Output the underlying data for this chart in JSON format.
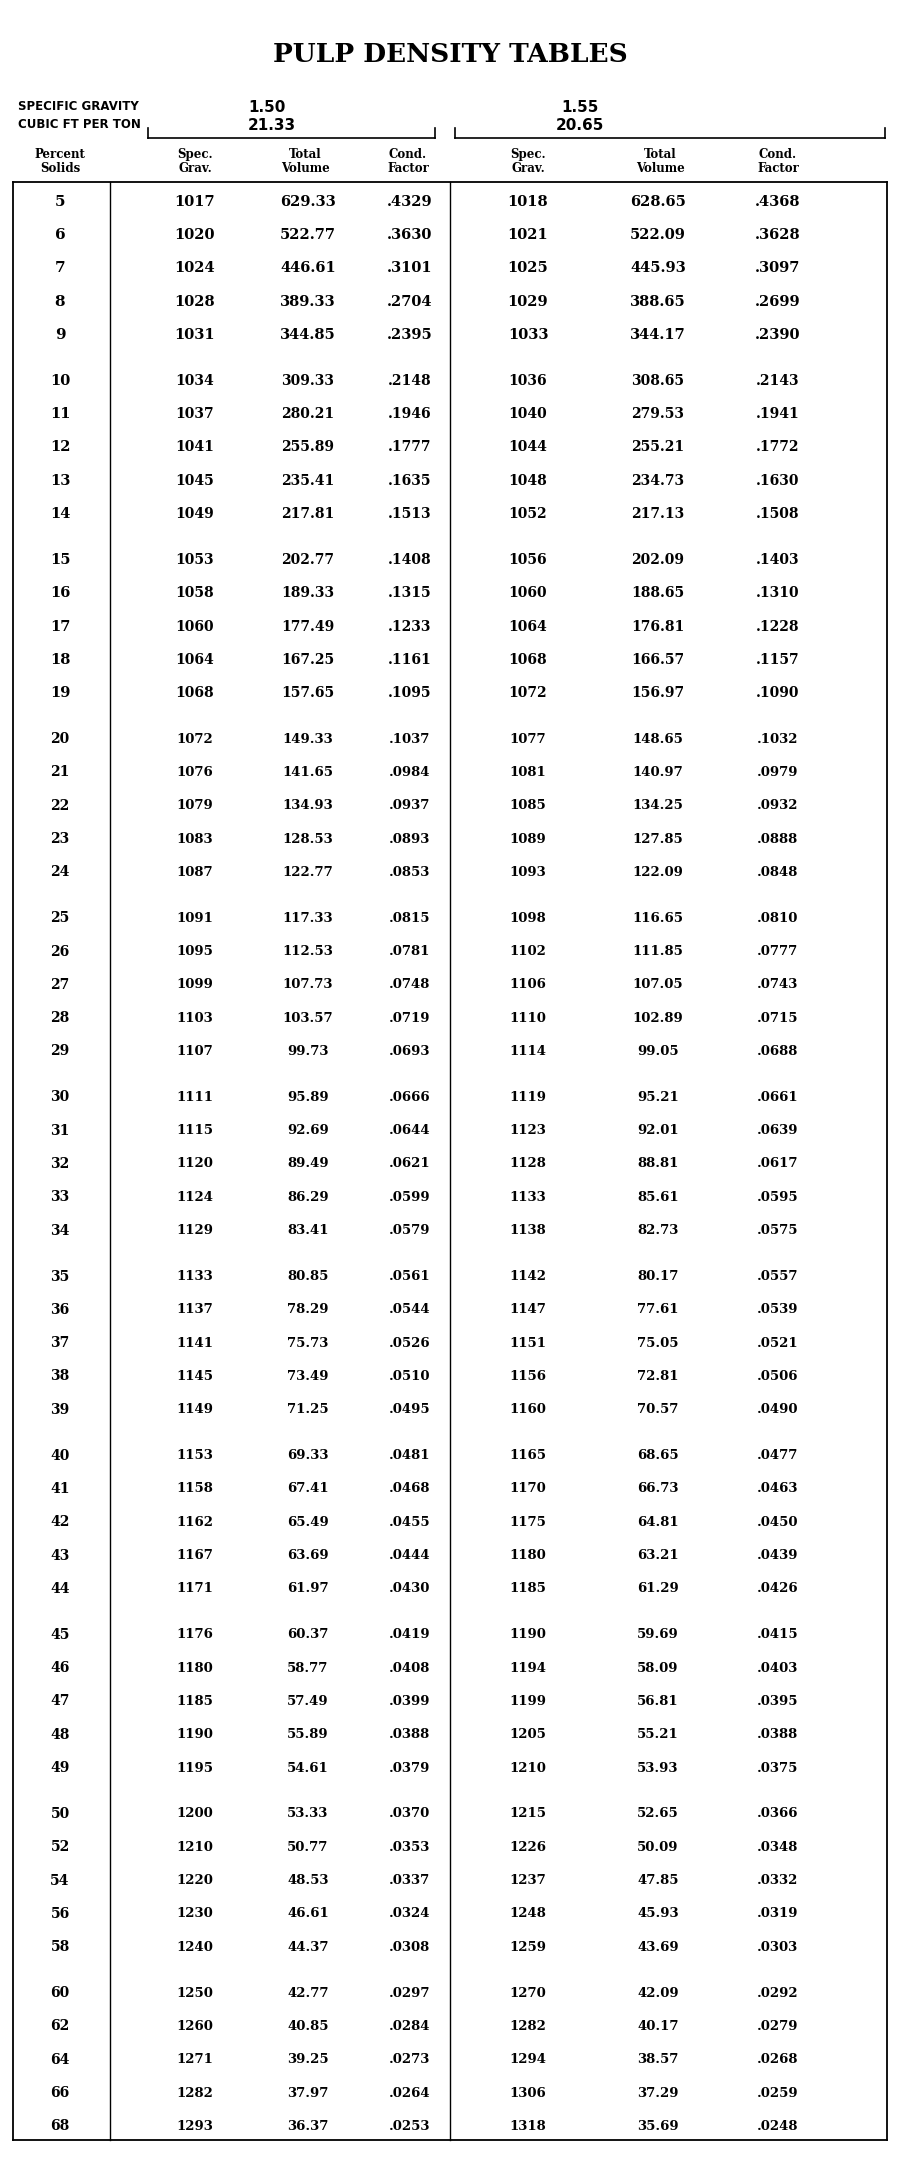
{
  "title": "PULP DENSITY TABLES",
  "sg1": "1.50",
  "cfpt1": "21.33",
  "sg2": "1.55",
  "cfpt2": "20.65",
  "rows": [
    [
      "5",
      "1017",
      "629.33",
      ".4329",
      "1018",
      "628.65",
      ".4368"
    ],
    [
      "6",
      "1020",
      "522.77",
      ".3630",
      "1021",
      "522.09",
      ".3628"
    ],
    [
      "7",
      "1024",
      "446.61",
      ".3101",
      "1025",
      "445.93",
      ".3097"
    ],
    [
      "8",
      "1028",
      "389.33",
      ".2704",
      "1029",
      "388.65",
      ".2699"
    ],
    [
      "9",
      "1031",
      "344.85",
      ".2395",
      "1033",
      "344.17",
      ".2390"
    ],
    null,
    [
      "10",
      "1034",
      "309.33",
      ".2148",
      "1036",
      "308.65",
      ".2143"
    ],
    [
      "11",
      "1037",
      "280.21",
      ".1946",
      "1040",
      "279.53",
      ".1941"
    ],
    [
      "12",
      "1041",
      "255.89",
      ".1777",
      "1044",
      "255.21",
      ".1772"
    ],
    [
      "13",
      "1045",
      "235.41",
      ".1635",
      "1048",
      "234.73",
      ".1630"
    ],
    [
      "14",
      "1049",
      "217.81",
      ".1513",
      "1052",
      "217.13",
      ".1508"
    ],
    null,
    [
      "15",
      "1053",
      "202.77",
      ".1408",
      "1056",
      "202.09",
      ".1403"
    ],
    [
      "16",
      "1058",
      "189.33",
      ".1315",
      "1060",
      "188.65",
      ".1310"
    ],
    [
      "17",
      "1060",
      "177.49",
      ".1233",
      "1064",
      "176.81",
      ".1228"
    ],
    [
      "18",
      "1064",
      "167.25",
      ".1161",
      "1068",
      "166.57",
      ".1157"
    ],
    [
      "19",
      "1068",
      "157.65",
      ".1095",
      "1072",
      "156.97",
      ".1090"
    ],
    null,
    [
      "20",
      "1072",
      "149.33",
      ".1037",
      "1077",
      "148.65",
      ".1032"
    ],
    [
      "21",
      "1076",
      "141.65",
      ".0984",
      "1081",
      "140.97",
      ".0979"
    ],
    [
      "22",
      "1079",
      "134.93",
      ".0937",
      "1085",
      "134.25",
      ".0932"
    ],
    [
      "23",
      "1083",
      "128.53",
      ".0893",
      "1089",
      "127.85",
      ".0888"
    ],
    [
      "24",
      "1087",
      "122.77",
      ".0853",
      "1093",
      "122.09",
      ".0848"
    ],
    null,
    [
      "25",
      "1091",
      "117.33",
      ".0815",
      "1098",
      "116.65",
      ".0810"
    ],
    [
      "26",
      "1095",
      "112.53",
      ".0781",
      "1102",
      "111.85",
      ".0777"
    ],
    [
      "27",
      "1099",
      "107.73",
      ".0748",
      "1106",
      "107.05",
      ".0743"
    ],
    [
      "28",
      "1103",
      "103.57",
      ".0719",
      "1110",
      "102.89",
      ".0715"
    ],
    [
      "29",
      "1107",
      "99.73",
      ".0693",
      "1114",
      "99.05",
      ".0688"
    ],
    null,
    [
      "30",
      "1111",
      "95.89",
      ".0666",
      "1119",
      "95.21",
      ".0661"
    ],
    [
      "31",
      "1115",
      "92.69",
      ".0644",
      "1123",
      "92.01",
      ".0639"
    ],
    [
      "32",
      "1120",
      "89.49",
      ".0621",
      "1128",
      "88.81",
      ".0617"
    ],
    [
      "33",
      "1124",
      "86.29",
      ".0599",
      "1133",
      "85.61",
      ".0595"
    ],
    [
      "34",
      "1129",
      "83.41",
      ".0579",
      "1138",
      "82.73",
      ".0575"
    ],
    null,
    [
      "35",
      "1133",
      "80.85",
      ".0561",
      "1142",
      "80.17",
      ".0557"
    ],
    [
      "36",
      "1137",
      "78.29",
      ".0544",
      "1147",
      "77.61",
      ".0539"
    ],
    [
      "37",
      "1141",
      "75.73",
      ".0526",
      "1151",
      "75.05",
      ".0521"
    ],
    [
      "38",
      "1145",
      "73.49",
      ".0510",
      "1156",
      "72.81",
      ".0506"
    ],
    [
      "39",
      "1149",
      "71.25",
      ".0495",
      "1160",
      "70.57",
      ".0490"
    ],
    null,
    [
      "40",
      "1153",
      "69.33",
      ".0481",
      "1165",
      "68.65",
      ".0477"
    ],
    [
      "41",
      "1158",
      "67.41",
      ".0468",
      "1170",
      "66.73",
      ".0463"
    ],
    [
      "42",
      "1162",
      "65.49",
      ".0455",
      "1175",
      "64.81",
      ".0450"
    ],
    [
      "43",
      "1167",
      "63.69",
      ".0444",
      "1180",
      "63.21",
      ".0439"
    ],
    [
      "44",
      "1171",
      "61.97",
      ".0430",
      "1185",
      "61.29",
      ".0426"
    ],
    null,
    [
      "45",
      "1176",
      "60.37",
      ".0419",
      "1190",
      "59.69",
      ".0415"
    ],
    [
      "46",
      "1180",
      "58.77",
      ".0408",
      "1194",
      "58.09",
      ".0403"
    ],
    [
      "47",
      "1185",
      "57.49",
      ".0399",
      "1199",
      "56.81",
      ".0395"
    ],
    [
      "48",
      "1190",
      "55.89",
      ".0388",
      "1205",
      "55.21",
      ".0388"
    ],
    [
      "49",
      "1195",
      "54.61",
      ".0379",
      "1210",
      "53.93",
      ".0375"
    ],
    null,
    [
      "50",
      "1200",
      "53.33",
      ".0370",
      "1215",
      "52.65",
      ".0366"
    ],
    [
      "52",
      "1210",
      "50.77",
      ".0353",
      "1226",
      "50.09",
      ".0348"
    ],
    [
      "54",
      "1220",
      "48.53",
      ".0337",
      "1237",
      "47.85",
      ".0332"
    ],
    [
      "56",
      "1230",
      "46.61",
      ".0324",
      "1248",
      "45.93",
      ".0319"
    ],
    [
      "58",
      "1240",
      "44.37",
      ".0308",
      "1259",
      "43.69",
      ".0303"
    ],
    null,
    [
      "60",
      "1250",
      "42.77",
      ".0297",
      "1270",
      "42.09",
      ".0292"
    ],
    [
      "62",
      "1260",
      "40.85",
      ".0284",
      "1282",
      "40.17",
      ".0279"
    ],
    [
      "64",
      "1271",
      "39.25",
      ".0273",
      "1294",
      "38.57",
      ".0268"
    ],
    [
      "66",
      "1282",
      "37.97",
      ".0264",
      "1306",
      "37.29",
      ".0259"
    ],
    [
      "68",
      "1293",
      "36.37",
      ".0253",
      "1318",
      "35.69",
      ".0248"
    ]
  ]
}
